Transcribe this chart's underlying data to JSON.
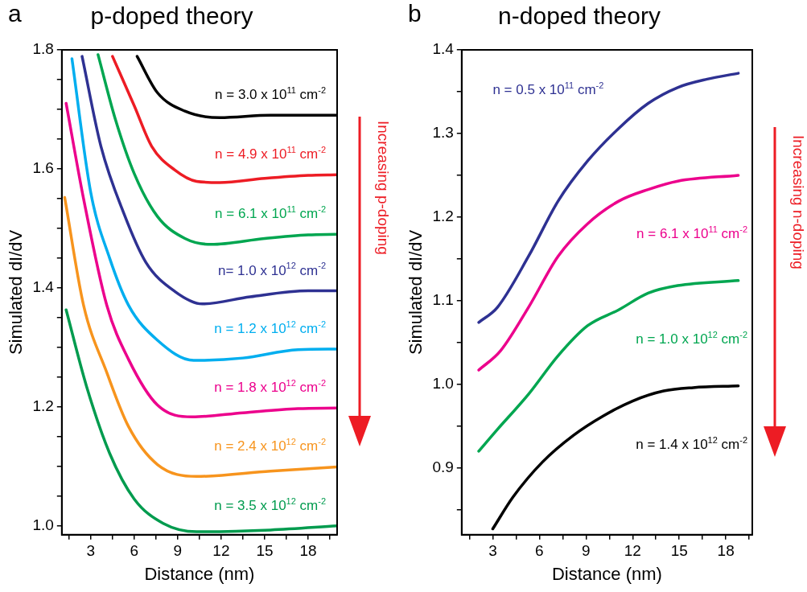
{
  "chart_data": [
    {
      "type": "line",
      "title": "p-doped theory",
      "xlabel": "Distance (nm)",
      "ylabel": "Simulated dI/dV",
      "annotations": [
        "a",
        "Increasing p-doping"
      ],
      "marker": "none",
      "line_style": "solid",
      "xlim": [
        1,
        20
      ],
      "ylim": [
        0.985,
        1.8
      ],
      "xticks": [
        {
          "value": 1.5,
          "label": null
        },
        3,
        {
          "value": 4.5,
          "label": null
        },
        6,
        {
          "value": 7.5,
          "label": null
        },
        9,
        {
          "value": 10.5,
          "label": null
        },
        12,
        {
          "value": 13.5,
          "label": null
        },
        15,
        {
          "value": 16.5,
          "label": null
        },
        18,
        {
          "value": 19.5,
          "label": null
        }
      ],
      "yticks": [
        {
          "value": 1.0,
          "label": "1.0"
        },
        {
          "value": 1.05,
          "label": null
        },
        {
          "value": 1.1,
          "label": null
        },
        {
          "value": 1.15,
          "label": null
        },
        1.2,
        {
          "value": 1.25,
          "label": null
        },
        {
          "value": 1.3,
          "label": null
        },
        {
          "value": 1.35,
          "label": null
        },
        1.4,
        {
          "value": 1.45,
          "label": null
        },
        {
          "value": 1.5,
          "label": null
        },
        {
          "value": 1.55,
          "label": null
        },
        1.6,
        {
          "value": 1.65,
          "label": null
        },
        {
          "value": 1.7,
          "label": null
        },
        {
          "value": 1.75,
          "label": null
        },
        1.8
      ],
      "series": [
        {
          "name": "n = 3.0 x 10$^{11}$ cm$^{-2}$",
          "color": "#000000",
          "x": [
            6.2,
            7.6,
            9.5,
            11.9,
            15.4,
            20
          ],
          "values": [
            1.789,
            1.728,
            1.697,
            1.686,
            1.69,
            1.69
          ]
        },
        {
          "name": "n = 4.9 x 10$^{11}$ cm$^{-2}$",
          "color": "#ed1c24",
          "x": [
            4.5,
            6.0,
            7.2,
            8.8,
            10.3,
            11.9,
            15,
            18,
            20
          ],
          "values": [
            1.789,
            1.706,
            1.638,
            1.598,
            1.579,
            1.577,
            1.584,
            1.589,
            1.59
          ]
        },
        {
          "name": "n = 6.1 x 10$^{11}$ cm$^{-2}$",
          "color": "#00a650",
          "x": [
            3.5,
            4.7,
            6.0,
            7.6,
            9.5,
            11.3,
            15,
            18,
            20
          ],
          "values": [
            1.792,
            1.683,
            1.592,
            1.52,
            1.483,
            1.473,
            1.483,
            1.489,
            1.49
          ]
        },
        {
          "name": "n= 1.0 x 10$^{12}$ cm$^{-2}$",
          "color": "#2e3192",
          "x": [
            2.4,
            3.7,
            5.3,
            6.8,
            8.8,
            10.7,
            14,
            18,
            20
          ],
          "values": [
            1.789,
            1.638,
            1.524,
            1.443,
            1.394,
            1.373,
            1.385,
            1.395,
            1.395
          ]
        },
        {
          "name": "n = 1.2 x 10$^{12}$ cm$^{-2}$",
          "color": "#00aeef",
          "x": [
            1.7,
            3.0,
            4.3,
            5.6,
            7.6,
            10.1,
            13.5,
            17.3,
            20
          ],
          "values": [
            1.785,
            1.56,
            1.45,
            1.371,
            1.312,
            1.278,
            1.282,
            1.296,
            1.297
          ]
        },
        {
          "name": "n = 1.8 x 10$^{12}$ cm$^{-2}$",
          "color": "#ec008c",
          "x": [
            1.3,
            2.5,
            4.1,
            5.6,
            7.6,
            10.0,
            13.5,
            17.3,
            20
          ],
          "values": [
            1.71,
            1.55,
            1.371,
            1.28,
            1.203,
            1.183,
            1.19,
            1.197,
            1.198
          ]
        },
        {
          "name": "n = 2.4 x 10$^{12}$ cm$^{-2}$",
          "color": "#f7941d",
          "x": [
            1.2,
            2.5,
            4.1,
            5.6,
            7.6,
            10.3,
            15.4,
            20
          ],
          "values": [
            1.552,
            1.371,
            1.258,
            1.167,
            1.103,
            1.083,
            1.092,
            1.099
          ]
        },
        {
          "name": "n = 3.5 x 10$^{12}$ cm$^{-2}$",
          "color": "#009b4e",
          "x": [
            1.3,
            2.7,
            4.3,
            6.0,
            8.0,
            10.3,
            15.4,
            20
          ],
          "values": [
            1.363,
            1.235,
            1.122,
            1.045,
            1.004,
            0.99,
            0.993,
            1.0
          ]
        }
      ]
    },
    {
      "type": "line",
      "title": "n-doped theory",
      "xlabel": "Distance (nm)",
      "ylabel": "Simulated dI/dV",
      "annotations": [
        "b",
        "Increasing n-doping"
      ],
      "marker": "none",
      "line_style": "solid",
      "xlim": [
        1,
        19.7
      ],
      "ylim": [
        0.82,
        1.4
      ],
      "xticks": [
        {
          "value": 1.5,
          "label": null
        },
        3,
        {
          "value": 4.5,
          "label": null
        },
        6,
        {
          "value": 7.5,
          "label": null
        },
        9,
        {
          "value": 10.5,
          "label": null
        },
        12,
        {
          "value": 13.5,
          "label": null
        },
        15,
        {
          "value": 16.5,
          "label": null
        },
        18,
        {
          "value": 19.5,
          "label": null
        }
      ],
      "yticks": [
        {
          "value": 0.85,
          "label": null
        },
        0.9,
        {
          "value": 0.95,
          "label": null
        },
        {
          "value": 1.0,
          "label": "1.0"
        },
        {
          "value": 1.05,
          "label": null
        },
        1.1,
        {
          "value": 1.15,
          "label": null
        },
        1.2,
        {
          "value": 1.25,
          "label": null
        },
        1.3,
        {
          "value": 1.35,
          "label": null
        },
        1.4
      ],
      "series": [
        {
          "name": "n = 0.5 x 10$^{11}$ cm$^{-2}$",
          "color": "#2e3192",
          "x": [
            2.1,
            3.3,
            5.3,
            7.2,
            9.1,
            11.1,
            13.0,
            14.9,
            16.8,
            18.8
          ],
          "values": [
            1.074,
            1.092,
            1.153,
            1.219,
            1.267,
            1.306,
            1.336,
            1.355,
            1.365,
            1.372
          ]
        },
        {
          "name": "n = 6.1 x 10$^{11}$ cm$^{-2}$",
          "color": "#ec008c",
          "x": [
            2.1,
            3.5,
            5.3,
            7.2,
            9.1,
            11.1,
            13.0,
            14.9,
            18.8
          ],
          "values": [
            1.017,
            1.04,
            1.092,
            1.153,
            1.192,
            1.219,
            1.233,
            1.243,
            1.25
          ]
        },
        {
          "name": "n = 1.0 x 10$^{12}$ cm$^{-2}$",
          "color": "#00a650",
          "x": [
            2.1,
            3.3,
            5.3,
            7.2,
            9.1,
            11.1,
            13.0,
            14.9,
            18.8
          ],
          "values": [
            0.92,
            0.946,
            0.988,
            1.034,
            1.07,
            1.089,
            1.109,
            1.118,
            1.124
          ]
        },
        {
          "name": "n = 1.4 x 10$^{12}$ cm$^{-2}$",
          "color": "#000000",
          "x": [
            3.0,
            4.3,
            6.2,
            8.2,
            10.1,
            12.0,
            14.0,
            15.9,
            18.8
          ],
          "values": [
            0.827,
            0.865,
            0.907,
            0.939,
            0.962,
            0.98,
            0.992,
            0.996,
            0.998
          ]
        }
      ]
    }
  ]
}
